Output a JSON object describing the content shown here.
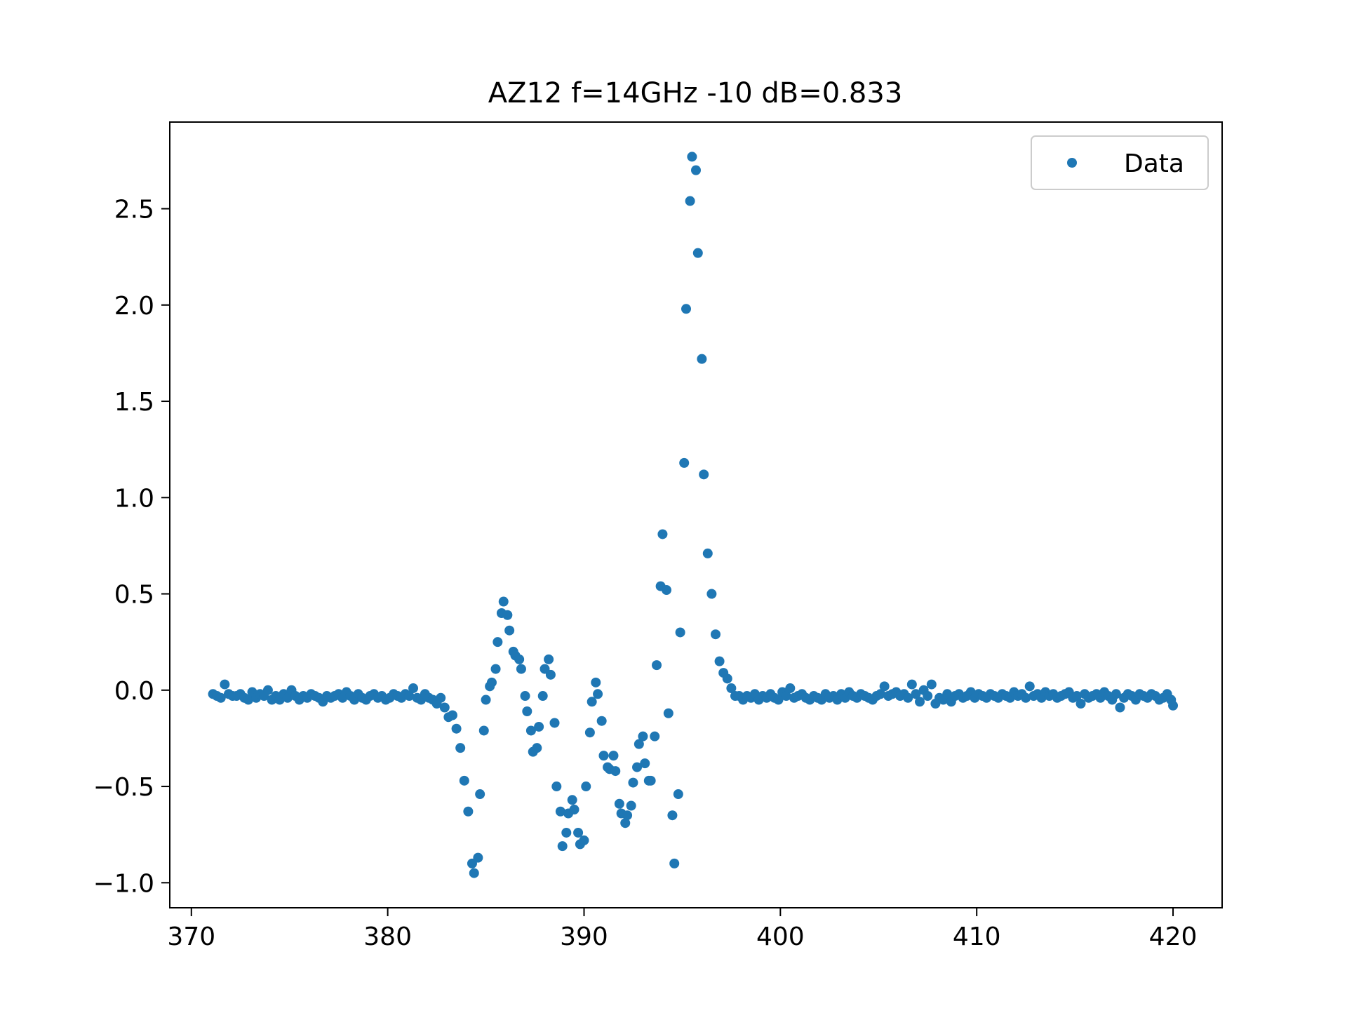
{
  "chart_data": {
    "type": "scatter",
    "title": "AZ12 f=14GHz -10 dB=0.833",
    "xlabel": "",
    "ylabel": "",
    "xlim": [
      368.9,
      422.5
    ],
    "ylim": [
      -1.13,
      2.95
    ],
    "x_ticks": [
      370,
      380,
      390,
      400,
      410,
      420
    ],
    "x_tick_labels": [
      "370",
      "380",
      "390",
      "400",
      "410",
      "420"
    ],
    "y_ticks": [
      -1.0,
      -0.5,
      0.0,
      0.5,
      1.0,
      1.5,
      2.0,
      2.5
    ],
    "y_tick_labels": [
      "−1.0",
      "−0.5",
      "0.0",
      "0.5",
      "1.0",
      "1.5",
      "2.0",
      "2.5"
    ],
    "grid": false,
    "legend": {
      "position": "top-right",
      "entries": [
        "Data"
      ]
    },
    "marker_color": "#1f77b4",
    "series": [
      {
        "name": "Data",
        "x": [
          371.1,
          371.3,
          371.5,
          371.7,
          371.9,
          372.1,
          372.3,
          372.5,
          372.7,
          372.9,
          373.1,
          373.3,
          373.5,
          373.7,
          373.9,
          374.1,
          374.3,
          374.5,
          374.7,
          374.9,
          375.1,
          375.3,
          375.5,
          375.7,
          375.9,
          376.1,
          376.3,
          376.5,
          376.7,
          376.9,
          377.1,
          377.3,
          377.5,
          377.7,
          377.9,
          378.1,
          378.3,
          378.5,
          378.7,
          378.9,
          379.1,
          379.3,
          379.5,
          379.7,
          379.9,
          380.1,
          380.3,
          380.5,
          380.7,
          380.9,
          381.1,
          381.3,
          381.5,
          381.7,
          381.9,
          382.1,
          382.3,
          382.5,
          382.7,
          382.9,
          383.1,
          383.3,
          383.5,
          383.7,
          383.9,
          384.1,
          384.3,
          384.4,
          384.6,
          384.7,
          384.9,
          385.0,
          385.2,
          385.3,
          385.5,
          385.6,
          385.8,
          385.9,
          386.1,
          386.2,
          386.4,
          386.5,
          386.7,
          386.8,
          387.0,
          387.1,
          387.3,
          387.4,
          387.6,
          387.7,
          387.9,
          388.0,
          388.2,
          388.3,
          388.5,
          388.6,
          388.8,
          388.9,
          389.1,
          389.2,
          389.4,
          389.5,
          389.7,
          389.8,
          390.0,
          390.1,
          390.3,
          390.4,
          390.6,
          390.7,
          390.9,
          391.0,
          391.2,
          391.3,
          391.5,
          391.6,
          391.8,
          391.9,
          392.1,
          392.2,
          392.4,
          392.5,
          392.7,
          392.8,
          393.0,
          393.1,
          393.3,
          393.4,
          393.6,
          393.7,
          393.9,
          394.0,
          394.2,
          394.3,
          394.5,
          394.6,
          394.8,
          394.9,
          395.1,
          395.2,
          395.4,
          395.5,
          395.7,
          395.8,
          396.0,
          396.1,
          396.3,
          396.5,
          396.7,
          396.9,
          397.1,
          397.3,
          397.5,
          397.7,
          397.9,
          398.1,
          398.3,
          398.5,
          398.7,
          398.9,
          399.1,
          399.3,
          399.5,
          399.7,
          399.9,
          400.1,
          400.3,
          400.5,
          400.7,
          400.9,
          401.1,
          401.3,
          401.5,
          401.7,
          401.9,
          402.1,
          402.3,
          402.5,
          402.7,
          402.9,
          403.1,
          403.3,
          403.5,
          403.7,
          403.9,
          404.1,
          404.3,
          404.5,
          404.7,
          404.9,
          405.1,
          405.3,
          405.5,
          405.7,
          405.9,
          406.1,
          406.3,
          406.5,
          406.7,
          406.9,
          407.1,
          407.3,
          407.5,
          407.7,
          407.9,
          408.1,
          408.3,
          408.5,
          408.7,
          408.9,
          409.1,
          409.3,
          409.5,
          409.7,
          409.9,
          410.1,
          410.3,
          410.5,
          410.7,
          410.9,
          411.1,
          411.3,
          411.5,
          411.7,
          411.9,
          412.1,
          412.3,
          412.5,
          412.7,
          412.9,
          413.1,
          413.3,
          413.5,
          413.7,
          413.9,
          414.1,
          414.3,
          414.5,
          414.7,
          414.9,
          415.1,
          415.3,
          415.5,
          415.7,
          415.9,
          416.1,
          416.3,
          416.5,
          416.7,
          416.9,
          417.1,
          417.3,
          417.5,
          417.7,
          417.9,
          418.1,
          418.3,
          418.5,
          418.7,
          418.9,
          419.1,
          419.3,
          419.5,
          419.7,
          419.9,
          420.0
        ],
        "y": [
          -0.02,
          -0.03,
          -0.04,
          0.03,
          -0.02,
          -0.03,
          -0.03,
          -0.02,
          -0.04,
          -0.05,
          -0.01,
          -0.04,
          -0.02,
          -0.03,
          0.0,
          -0.05,
          -0.03,
          -0.05,
          -0.02,
          -0.04,
          0.0,
          -0.03,
          -0.05,
          -0.03,
          -0.04,
          -0.02,
          -0.03,
          -0.04,
          -0.06,
          -0.03,
          -0.04,
          -0.03,
          -0.02,
          -0.04,
          -0.01,
          -0.03,
          -0.05,
          -0.02,
          -0.04,
          -0.05,
          -0.03,
          -0.02,
          -0.04,
          -0.03,
          -0.05,
          -0.04,
          -0.02,
          -0.03,
          -0.04,
          -0.02,
          -0.03,
          0.01,
          -0.04,
          -0.05,
          -0.02,
          -0.04,
          -0.05,
          -0.07,
          -0.04,
          -0.09,
          -0.14,
          -0.13,
          -0.2,
          -0.3,
          -0.47,
          -0.63,
          -0.9,
          -0.95,
          -0.87,
          -0.54,
          -0.21,
          -0.05,
          0.02,
          0.04,
          0.11,
          0.25,
          0.4,
          0.46,
          0.39,
          0.31,
          0.2,
          0.18,
          0.16,
          0.11,
          -0.03,
          -0.11,
          -0.21,
          -0.32,
          -0.3,
          -0.19,
          -0.03,
          0.11,
          0.16,
          0.08,
          -0.17,
          -0.5,
          -0.63,
          -0.81,
          -0.74,
          -0.64,
          -0.57,
          -0.62,
          -0.74,
          -0.8,
          -0.78,
          -0.5,
          -0.22,
          -0.06,
          0.04,
          -0.02,
          -0.16,
          -0.34,
          -0.4,
          -0.41,
          -0.34,
          -0.42,
          -0.59,
          -0.64,
          -0.69,
          -0.65,
          -0.6,
          -0.48,
          -0.4,
          -0.28,
          -0.24,
          -0.38,
          -0.47,
          -0.47,
          -0.24,
          0.13,
          0.54,
          0.81,
          0.52,
          -0.12,
          -0.65,
          -0.9,
          -0.54,
          0.3,
          1.18,
          1.98,
          2.54,
          2.77,
          2.7,
          2.27,
          1.72,
          1.12,
          0.71,
          0.5,
          0.29,
          0.15,
          0.09,
          0.06,
          0.01,
          -0.03,
          -0.03,
          -0.05,
          -0.03,
          -0.04,
          -0.02,
          -0.05,
          -0.03,
          -0.04,
          -0.02,
          -0.04,
          -0.05,
          -0.01,
          -0.03,
          0.01,
          -0.04,
          -0.03,
          -0.02,
          -0.04,
          -0.05,
          -0.03,
          -0.04,
          -0.05,
          -0.02,
          -0.04,
          -0.03,
          -0.05,
          -0.02,
          -0.04,
          -0.01,
          -0.03,
          -0.04,
          -0.02,
          -0.03,
          -0.04,
          -0.05,
          -0.03,
          -0.02,
          0.02,
          -0.03,
          -0.02,
          -0.01,
          -0.03,
          -0.02,
          -0.04,
          0.03,
          -0.02,
          -0.06,
          0.0,
          -0.03,
          0.03,
          -0.07,
          -0.04,
          -0.05,
          -0.02,
          -0.06,
          -0.03,
          -0.02,
          -0.04,
          -0.03,
          -0.01,
          -0.04,
          -0.02,
          -0.03,
          -0.04,
          -0.02,
          -0.03,
          -0.04,
          -0.02,
          -0.03,
          -0.04,
          -0.01,
          -0.03,
          -0.02,
          -0.04,
          0.02,
          -0.03,
          -0.02,
          -0.04,
          -0.01,
          -0.03,
          -0.02,
          -0.04,
          -0.03,
          -0.02,
          -0.01,
          -0.04,
          -0.03,
          -0.07,
          -0.02,
          -0.04,
          -0.03,
          -0.02,
          -0.04,
          -0.01,
          -0.03,
          -0.05,
          -0.02,
          -0.09,
          -0.04,
          -0.02,
          -0.03,
          -0.05,
          -0.02,
          -0.03,
          -0.04,
          -0.02,
          -0.03,
          -0.05,
          -0.04,
          -0.02,
          -0.05,
          -0.08
        ]
      }
    ]
  }
}
